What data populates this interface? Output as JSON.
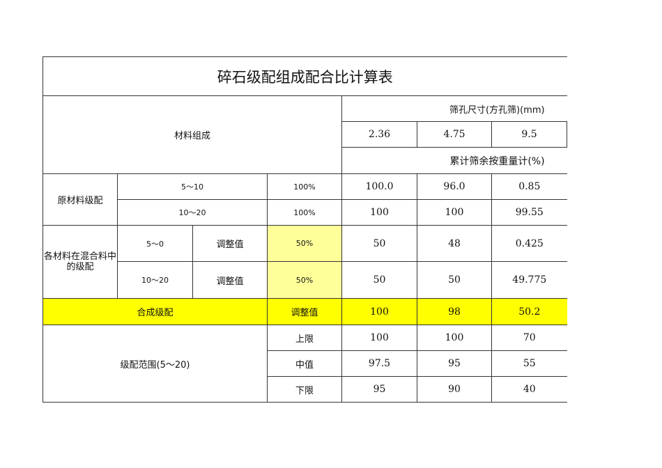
{
  "title": "碎石级配组成配合比计算表",
  "header": {
    "material_composition": "材料组成",
    "sieve_size": "筛孔尺寸(方孔筛)(mm)",
    "sizes": [
      "2.36",
      "4.75",
      "9.5"
    ],
    "cumulative": "累计筛余按重量计(%)"
  },
  "raw": {
    "label": "原材料级配",
    "rows": [
      {
        "name": "5～10",
        "pct": "100%",
        "values": [
          "100.0",
          "96.0",
          "0.85"
        ]
      },
      {
        "name": "10～20",
        "pct": "100%",
        "values": [
          "100",
          "100",
          "99.55"
        ]
      }
    ]
  },
  "mix": {
    "label": "各材料在混合料中的级配",
    "rows": [
      {
        "name": "5～0",
        "adj": "调整值",
        "pct": "50%",
        "values": [
          "50",
          "48",
          "0.425"
        ]
      },
      {
        "name": "10～20",
        "adj": "调整值",
        "pct": "50%",
        "values": [
          "50",
          "50",
          "49.775"
        ]
      }
    ]
  },
  "composite": {
    "label": "合成级配",
    "adj": "调整值",
    "values": [
      "100",
      "98",
      "50.2"
    ]
  },
  "range": {
    "label": "级配范围(5～20)",
    "rows": [
      {
        "name": "上限",
        "values": [
          "100",
          "100",
          "70"
        ]
      },
      {
        "name": "中值",
        "values": [
          "97.5",
          "95",
          "55"
        ]
      },
      {
        "name": "下限",
        "values": [
          "95",
          "90",
          "40"
        ]
      }
    ]
  },
  "colors": {
    "highlight_light": "#ffff99",
    "highlight": "#ffff00"
  }
}
